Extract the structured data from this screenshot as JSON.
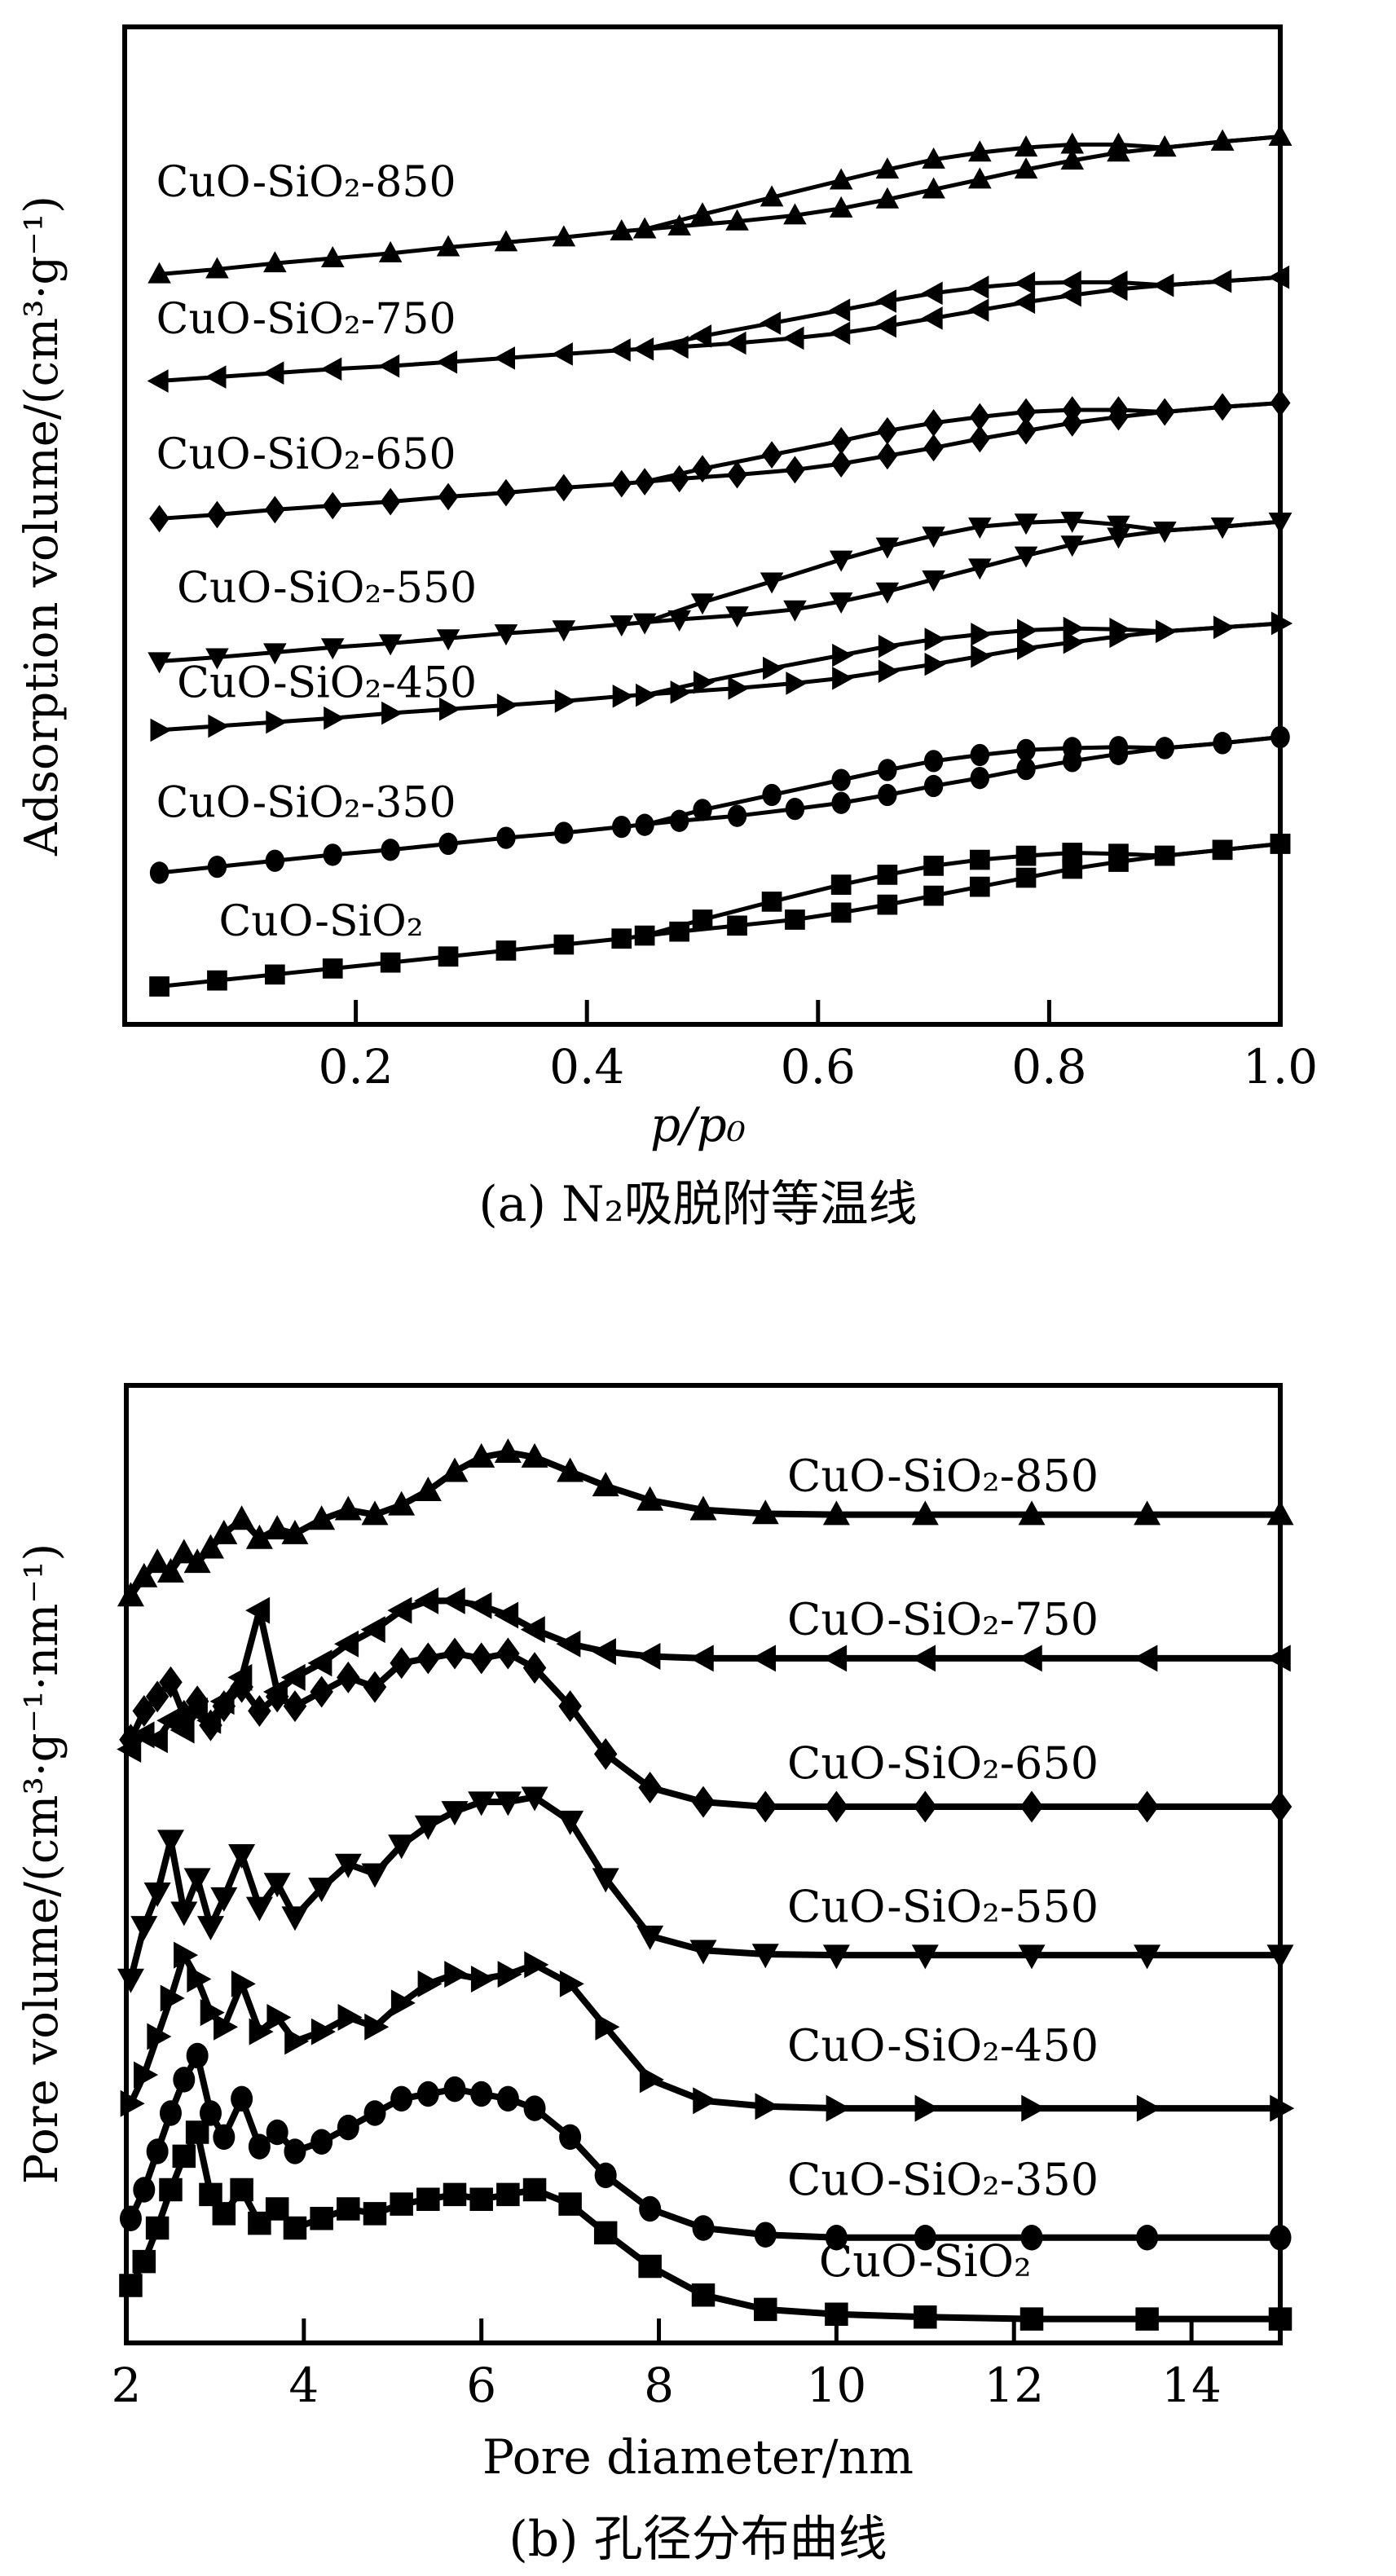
{
  "figure_colors": {
    "background": "#ffffff",
    "line": "#000000"
  },
  "chart_data": [
    {
      "type": "line",
      "id": "n2-isotherms",
      "caption": "(a) N₂吸脱附等温线",
      "xlabel": "p/p₀",
      "ylabel": "Adsorption volume/(cm³·g⁻¹)",
      "xlim": [
        0,
        1.0
      ],
      "ylim": [
        0,
        100
      ],
      "xticks": [
        0.2,
        0.4,
        0.6,
        0.8,
        1.0
      ],
      "xtick_labels": [
        "0.2",
        "0.4",
        "0.6",
        "0.8",
        "1.0"
      ],
      "yticks": [],
      "grid": false,
      "legend_position": "inline-labels-left",
      "x_adsorption": [
        0.03,
        0.08,
        0.13,
        0.18,
        0.23,
        0.28,
        0.33,
        0.38,
        0.43,
        0.48,
        0.53,
        0.58,
        0.62,
        0.66,
        0.7,
        0.74,
        0.78,
        0.82,
        0.86,
        0.9,
        0.95,
        1.0
      ],
      "x_desorption": [
        1.0,
        0.95,
        0.9,
        0.86,
        0.82,
        0.78,
        0.74,
        0.7,
        0.66,
        0.62,
        0.56,
        0.5,
        0.45
      ],
      "series": [
        {
          "name": "CuO-SiO₂-850",
          "marker": "triangle-up",
          "label_pos": {
            "x": 0.157,
            "y": 83
          },
          "adsorption_y": [
            75.2,
            75.7,
            76.3,
            76.8,
            77.3,
            77.9,
            78.4,
            78.9,
            79.5,
            80.0,
            80.5,
            81.1,
            81.8,
            82.7,
            83.7,
            84.7,
            85.7,
            86.6,
            87.4,
            87.9,
            88.5,
            89.0
          ],
          "desorption_y": [
            89.0,
            88.5,
            87.9,
            88.2,
            88.2,
            87.9,
            87.4,
            86.7,
            85.7,
            84.6,
            82.9,
            81.2,
            79.7
          ]
        },
        {
          "name": "CuO-SiO₂-750",
          "marker": "triangle-left",
          "label_pos": {
            "x": 0.157,
            "y": 69.3
          },
          "adsorption_y": [
            64.5,
            64.9,
            65.3,
            65.7,
            66.0,
            66.4,
            66.8,
            67.2,
            67.6,
            67.9,
            68.3,
            68.8,
            69.3,
            70.0,
            70.8,
            71.6,
            72.4,
            73.1,
            73.7,
            74.1,
            74.5,
            74.9
          ],
          "desorption_y": [
            74.9,
            74.5,
            74.1,
            74.4,
            74.4,
            74.3,
            73.9,
            73.3,
            72.5,
            71.6,
            70.3,
            69.0,
            67.7
          ]
        },
        {
          "name": "CuO-SiO₂-650",
          "marker": "diamond",
          "label_pos": {
            "x": 0.157,
            "y": 55.7
          },
          "adsorption_y": [
            50.7,
            51.1,
            51.6,
            52.0,
            52.4,
            52.9,
            53.3,
            53.8,
            54.2,
            54.7,
            55.1,
            55.6,
            56.2,
            57.0,
            57.8,
            58.7,
            59.5,
            60.3,
            60.9,
            61.4,
            61.9,
            62.3
          ],
          "desorption_y": [
            62.3,
            61.9,
            61.4,
            61.6,
            61.6,
            61.4,
            60.9,
            60.3,
            59.5,
            58.5,
            57.1,
            55.7,
            54.4
          ]
        },
        {
          "name": "CuO-SiO₂-550",
          "marker": "triangle-down",
          "label_pos": {
            "x": 0.175,
            "y": 42.3
          },
          "adsorption_y": [
            36.4,
            36.8,
            37.3,
            37.8,
            38.2,
            38.7,
            39.2,
            39.6,
            40.1,
            40.6,
            41.0,
            41.6,
            42.4,
            43.4,
            44.6,
            45.8,
            47.0,
            48.1,
            48.9,
            49.5,
            49.9,
            50.4
          ],
          "desorption_y": [
            50.4,
            49.9,
            49.5,
            50.1,
            50.5,
            50.3,
            49.9,
            49.0,
            47.9,
            46.6,
            44.4,
            42.3,
            40.3
          ]
        },
        {
          "name": "CuO-SiO₂-450",
          "marker": "triangle-right",
          "label_pos": {
            "x": 0.175,
            "y": 32.8
          },
          "adsorption_y": [
            29.5,
            29.9,
            30.3,
            30.7,
            31.2,
            31.6,
            32.0,
            32.4,
            32.9,
            33.3,
            33.7,
            34.2,
            34.7,
            35.4,
            36.1,
            36.9,
            37.7,
            38.3,
            38.9,
            39.4,
            39.8,
            40.2
          ],
          "desorption_y": [
            40.2,
            39.8,
            39.4,
            39.6,
            39.7,
            39.5,
            39.1,
            38.6,
            37.9,
            37.0,
            35.7,
            34.3,
            33.0
          ]
        },
        {
          "name": "CuO-SiO₂-350",
          "marker": "circle",
          "label_pos": {
            "x": 0.157,
            "y": 20.8
          },
          "adsorption_y": [
            15.2,
            15.8,
            16.4,
            17.0,
            17.5,
            18.1,
            18.7,
            19.2,
            19.8,
            20.4,
            20.9,
            21.6,
            22.2,
            23.0,
            23.9,
            24.7,
            25.6,
            26.4,
            27.1,
            27.7,
            28.2,
            28.8
          ],
          "desorption_y": [
            28.8,
            28.2,
            27.7,
            27.8,
            27.7,
            27.5,
            27.0,
            26.4,
            25.5,
            24.5,
            23.0,
            21.5,
            20.0
          ]
        },
        {
          "name": "CuO-SiO₂",
          "marker": "square",
          "label_pos": {
            "x": 0.17,
            "y": 8.9
          },
          "adsorption_y": [
            3.8,
            4.4,
            5.0,
            5.6,
            6.2,
            6.8,
            7.4,
            8.0,
            8.6,
            9.3,
            9.9,
            10.5,
            11.2,
            12.0,
            12.9,
            13.8,
            14.7,
            15.6,
            16.3,
            16.9,
            17.5,
            18.1
          ],
          "desorption_y": [
            18.1,
            17.5,
            16.9,
            17.1,
            17.2,
            16.9,
            16.5,
            15.9,
            15.0,
            14.0,
            12.3,
            10.5,
            8.9
          ]
        }
      ]
    },
    {
      "type": "line",
      "id": "pore-size-distribution",
      "caption": "(b) 孔径分布曲线",
      "xlabel": "Pore diameter/nm",
      "ylabel": "Pore volume/(cm³·g⁻¹·nm⁻¹)",
      "xlim": [
        2,
        15
      ],
      "ylim": [
        0,
        100
      ],
      "xticks": [
        2,
        4,
        6,
        8,
        10,
        12,
        14
      ],
      "xtick_labels": [
        "2",
        "4",
        "6",
        "8",
        "10",
        "12",
        "14"
      ],
      "yticks": [],
      "grid": false,
      "legend_position": "inline-labels-right",
      "x": [
        2.05,
        2.2,
        2.35,
        2.5,
        2.65,
        2.8,
        2.95,
        3.1,
        3.3,
        3.5,
        3.7,
        3.9,
        4.2,
        4.5,
        4.8,
        5.1,
        5.4,
        5.7,
        6.0,
        6.3,
        6.6,
        7.0,
        7.4,
        7.9,
        8.5,
        9.2,
        10.0,
        11.0,
        12.2,
        13.5,
        15.0
      ],
      "series": [
        {
          "name": "CuO-SiO₂-850",
          "marker": "triangle-up",
          "label_pos": {
            "x": 11.2,
            "y": 89
          },
          "y": [
            78,
            80,
            81.5,
            80.5,
            82.5,
            81.5,
            83,
            84.5,
            86,
            84,
            85,
            84.5,
            86,
            87,
            86.5,
            87.5,
            89,
            91,
            92.5,
            93,
            92.5,
            91,
            89.5,
            88,
            87,
            86.6,
            86.5,
            86.5,
            86.5,
            86.5,
            86.5
          ]
        },
        {
          "name": "CuO-SiO₂-750",
          "marker": "triangle-left",
          "label_pos": {
            "x": 11.2,
            "y": 74
          },
          "y": [
            62,
            63.5,
            63,
            65,
            64,
            66,
            65,
            67,
            69.5,
            76.5,
            68,
            69.5,
            71,
            73,
            74.5,
            76.5,
            77.5,
            77.5,
            77,
            76,
            74.5,
            73,
            72.2,
            71.7,
            71.5,
            71.5,
            71.5,
            71.5,
            71.5,
            71.5,
            71.5
          ]
        },
        {
          "name": "CuO-SiO₂-650",
          "marker": "diamond",
          "label_pos": {
            "x": 11.2,
            "y": 59
          },
          "y": [
            63,
            66,
            67.5,
            69,
            65.5,
            67,
            64.5,
            66.5,
            68.5,
            66,
            67.5,
            66.5,
            68,
            69.5,
            68.5,
            71,
            71.5,
            72,
            71.5,
            72,
            70.5,
            66.5,
            61.5,
            58,
            56.5,
            56,
            56,
            56,
            56,
            56,
            56
          ]
        },
        {
          "name": "CuO-SiO₂-550",
          "marker": "triangle-down",
          "label_pos": {
            "x": 11.2,
            "y": 44
          },
          "y": [
            38,
            43.5,
            47,
            52.5,
            45,
            48.5,
            43.5,
            46.5,
            51,
            45.5,
            48,
            44.5,
            47.5,
            50,
            49,
            52,
            54,
            55.5,
            56.5,
            56.5,
            57,
            54.5,
            48.5,
            42.5,
            41,
            40.6,
            40.5,
            40.5,
            40.5,
            40.5,
            40.5
          ]
        },
        {
          "name": "CuO-SiO₂-450",
          "marker": "triangle-right",
          "label_pos": {
            "x": 11.2,
            "y": 29.5
          },
          "y": [
            25,
            28,
            32,
            36,
            40.5,
            38,
            34.5,
            33,
            37.5,
            32.5,
            34,
            31.5,
            32.5,
            34,
            33,
            35.5,
            37.5,
            38.5,
            38,
            38.5,
            39.5,
            37.5,
            33,
            27.5,
            25.3,
            24.7,
            24.5,
            24.5,
            24.5,
            24.5,
            24.5
          ]
        },
        {
          "name": "CuO-SiO₂-350",
          "marker": "circle",
          "label_pos": {
            "x": 11.2,
            "y": 15.5
          },
          "y": [
            13,
            16,
            20,
            24,
            27.5,
            30,
            24,
            21.5,
            25.5,
            20.5,
            22,
            20,
            21,
            22.5,
            24,
            25.5,
            26,
            26.5,
            26,
            25.5,
            24.5,
            21.5,
            17.5,
            14,
            12,
            11.3,
            11,
            11,
            11,
            11,
            11
          ]
        },
        {
          "name": "CuO-SiO₂",
          "marker": "square",
          "label_pos": {
            "x": 11.0,
            "y": 7
          },
          "y": [
            6,
            8.5,
            12,
            16,
            19.5,
            22,
            15.5,
            13.5,
            16,
            12.5,
            14,
            12,
            13,
            14,
            13.5,
            14.5,
            15,
            15.5,
            15,
            15.5,
            16,
            14.5,
            11.5,
            8,
            5,
            3.5,
            3,
            2.7,
            2.5,
            2.5,
            2.5
          ]
        }
      ]
    }
  ]
}
